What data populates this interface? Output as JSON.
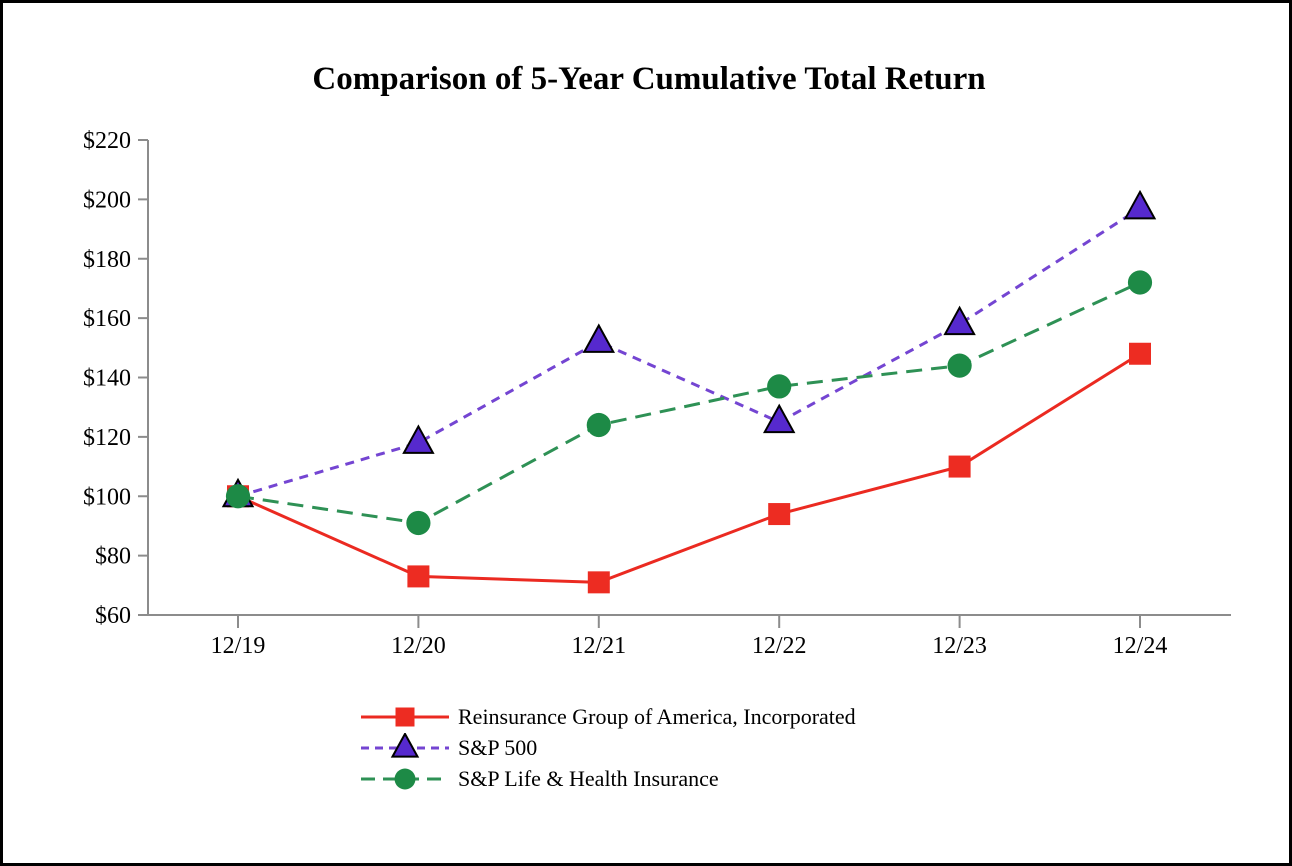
{
  "page": {
    "background_color": "#ffffff",
    "border_color": "#000000"
  },
  "chart_data": {
    "type": "line",
    "title": "Comparison of 5-Year Cumulative Total Return",
    "xlabel": "",
    "ylabel": "",
    "categories": [
      "12/19",
      "12/20",
      "12/21",
      "12/22",
      "12/23",
      "12/24"
    ],
    "ylim": [
      60,
      220
    ],
    "yticks": [
      60,
      80,
      100,
      120,
      140,
      160,
      180,
      200,
      220
    ],
    "ytick_prefix": "$",
    "grid": false,
    "legend_position": "bottom-left",
    "axis_color": "#8C8C8C",
    "series": [
      {
        "name": "Reinsurance Group of America, Incorporated",
        "marker": "square",
        "marker_icon": "red-square-marker-icon",
        "line_style": "solid",
        "line_color": "#EB2A21",
        "marker_color": "#ED2C22",
        "values": [
          100,
          73,
          71,
          94,
          110,
          148
        ]
      },
      {
        "name": "S&P 500",
        "marker": "triangle",
        "marker_icon": "purple-triangle-marker-icon",
        "line_style": "short-dash",
        "line_color": "#7445D2",
        "marker_color": "#5629CE",
        "values": [
          100,
          118,
          152,
          125,
          158,
          197
        ]
      },
      {
        "name": "S&P Life & Health Insurance",
        "marker": "circle",
        "marker_icon": "green-circle-marker-icon",
        "line_style": "long-dash",
        "line_color": "#2E9155",
        "marker_color": "#1D8A46",
        "values": [
          100,
          91,
          124,
          137,
          144,
          172
        ]
      }
    ]
  }
}
